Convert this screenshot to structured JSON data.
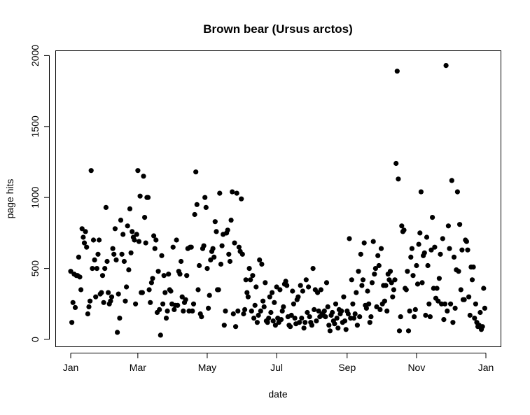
{
  "chart_data": {
    "type": "scatter",
    "title": "Brown bear (Ursus arctos)",
    "xlabel": "date",
    "ylabel": "page hits",
    "x_range": [
      "2015-01-01",
      "2016-01-01"
    ],
    "ylim": [
      0,
      2000
    ],
    "x_ticks": [
      {
        "label": "Jan",
        "date": "2015-01-01"
      },
      {
        "label": "Mar",
        "date": "2015-03-01"
      },
      {
        "label": "May",
        "date": "2015-05-01"
      },
      {
        "label": "Jul",
        "date": "2015-07-01"
      },
      {
        "label": "Sep",
        "date": "2015-09-01"
      },
      {
        "label": "Nov",
        "date": "2015-11-01"
      },
      {
        "label": "Jan",
        "date": "2016-01-01"
      }
    ],
    "y_ticks": [
      0,
      500,
      1000,
      1500,
      2000
    ],
    "grid": false,
    "point_color": "#000000",
    "points": [
      [
        "2015-01-01",
        480
      ],
      [
        "2015-01-02",
        120
      ],
      [
        "2015-01-03",
        260
      ],
      [
        "2015-01-04",
        460
      ],
      [
        "2015-01-05",
        225
      ],
      [
        "2015-01-06",
        450
      ],
      [
        "2015-01-07",
        450
      ],
      [
        "2015-01-08",
        580
      ],
      [
        "2015-01-09",
        440
      ],
      [
        "2015-01-10",
        350
      ],
      [
        "2015-01-11",
        780
      ],
      [
        "2015-01-12",
        720
      ],
      [
        "2015-01-13",
        680
      ],
      [
        "2015-01-14",
        760
      ],
      [
        "2015-01-15",
        650
      ],
      [
        "2015-01-16",
        180
      ],
      [
        "2015-01-17",
        230
      ],
      [
        "2015-01-18",
        270
      ],
      [
        "2015-01-19",
        1190
      ],
      [
        "2015-01-20",
        500
      ],
      [
        "2015-01-21",
        700
      ],
      [
        "2015-01-22",
        560
      ],
      [
        "2015-01-23",
        300
      ],
      [
        "2015-01-24",
        500
      ],
      [
        "2015-01-25",
        600
      ],
      [
        "2015-01-26",
        700
      ],
      [
        "2015-01-27",
        320
      ],
      [
        "2015-01-28",
        330
      ],
      [
        "2015-01-29",
        450
      ],
      [
        "2015-01-30",
        260
      ],
      [
        "2015-01-31",
        500
      ],
      [
        "2015-02-01",
        930
      ],
      [
        "2015-02-02",
        550
      ],
      [
        "2015-02-03",
        330
      ],
      [
        "2015-02-04",
        250
      ],
      [
        "2015-02-05",
        270
      ],
      [
        "2015-02-06",
        300
      ],
      [
        "2015-02-07",
        640
      ],
      [
        "2015-02-08",
        600
      ],
      [
        "2015-02-09",
        780
      ],
      [
        "2015-02-10",
        560
      ],
      [
        "2015-02-11",
        50
      ],
      [
        "2015-02-12",
        320
      ],
      [
        "2015-02-13",
        150
      ],
      [
        "2015-02-14",
        840
      ],
      [
        "2015-02-15",
        600
      ],
      [
        "2015-02-16",
        740
      ],
      [
        "2015-02-17",
        550
      ],
      [
        "2015-02-18",
        270
      ],
      [
        "2015-02-19",
        370
      ],
      [
        "2015-02-20",
        800
      ],
      [
        "2015-02-21",
        490
      ],
      [
        "2015-02-22",
        920
      ],
      [
        "2015-02-23",
        610
      ],
      [
        "2015-02-24",
        760
      ],
      [
        "2015-02-25",
        720
      ],
      [
        "2015-02-26",
        700
      ],
      [
        "2015-02-27",
        250
      ],
      [
        "2015-02-28",
        740
      ],
      [
        "2015-03-01",
        1190
      ],
      [
        "2015-03-02",
        690
      ],
      [
        "2015-03-03",
        1010
      ],
      [
        "2015-03-04",
        330
      ],
      [
        "2015-03-05",
        330
      ],
      [
        "2015-03-06",
        1150
      ],
      [
        "2015-03-07",
        860
      ],
      [
        "2015-03-08",
        680
      ],
      [
        "2015-03-09",
        1000
      ],
      [
        "2015-03-10",
        1000
      ],
      [
        "2015-03-11",
        350
      ],
      [
        "2015-03-12",
        260
      ],
      [
        "2015-03-13",
        400
      ],
      [
        "2015-03-14",
        430
      ],
      [
        "2015-03-15",
        730
      ],
      [
        "2015-03-16",
        640
      ],
      [
        "2015-03-17",
        700
      ],
      [
        "2015-03-18",
        190
      ],
      [
        "2015-03-19",
        480
      ],
      [
        "2015-03-20",
        210
      ],
      [
        "2015-03-21",
        30
      ],
      [
        "2015-03-22",
        590
      ],
      [
        "2015-03-23",
        250
      ],
      [
        "2015-03-24",
        450
      ],
      [
        "2015-03-25",
        330
      ],
      [
        "2015-03-26",
        150
      ],
      [
        "2015-03-27",
        200
      ],
      [
        "2015-03-28",
        460
      ],
      [
        "2015-03-29",
        350
      ],
      [
        "2015-03-30",
        340
      ],
      [
        "2015-03-31",
        250
      ],
      [
        "2015-04-01",
        650
      ],
      [
        "2015-04-02",
        210
      ],
      [
        "2015-04-03",
        240
      ],
      [
        "2015-04-04",
        700
      ],
      [
        "2015-04-05",
        240
      ],
      [
        "2015-04-06",
        480
      ],
      [
        "2015-04-07",
        460
      ],
      [
        "2015-04-08",
        550
      ],
      [
        "2015-04-09",
        300
      ],
      [
        "2015-04-10",
        200
      ],
      [
        "2015-04-11",
        260
      ],
      [
        "2015-04-12",
        280
      ],
      [
        "2015-04-13",
        450
      ],
      [
        "2015-04-14",
        640
      ],
      [
        "2015-04-15",
        200
      ],
      [
        "2015-04-16",
        650
      ],
      [
        "2015-04-17",
        650
      ],
      [
        "2015-04-18",
        200
      ],
      [
        "2015-04-19",
        250
      ],
      [
        "2015-04-20",
        880
      ],
      [
        "2015-04-21",
        1180
      ],
      [
        "2015-04-22",
        950
      ],
      [
        "2015-04-23",
        350
      ],
      [
        "2015-04-24",
        520
      ],
      [
        "2015-04-25",
        180
      ],
      [
        "2015-04-26",
        160
      ],
      [
        "2015-04-27",
        640
      ],
      [
        "2015-04-28",
        660
      ],
      [
        "2015-04-29",
        1000
      ],
      [
        "2015-04-30",
        930
      ],
      [
        "2015-05-01",
        500
      ],
      [
        "2015-05-02",
        220
      ],
      [
        "2015-05-03",
        310
      ],
      [
        "2015-05-04",
        560
      ],
      [
        "2015-05-05",
        620
      ],
      [
        "2015-05-06",
        640
      ],
      [
        "2015-05-07",
        580
      ],
      [
        "2015-05-08",
        830
      ],
      [
        "2015-05-09",
        760
      ],
      [
        "2015-05-10",
        350
      ],
      [
        "2015-05-11",
        350
      ],
      [
        "2015-05-12",
        1030
      ],
      [
        "2015-05-13",
        530
      ],
      [
        "2015-05-14",
        660
      ],
      [
        "2015-05-15",
        740
      ],
      [
        "2015-05-16",
        100
      ],
      [
        "2015-05-17",
        200
      ],
      [
        "2015-05-18",
        750
      ],
      [
        "2015-05-19",
        770
      ],
      [
        "2015-05-20",
        600
      ],
      [
        "2015-05-21",
        550
      ],
      [
        "2015-05-22",
        840
      ],
      [
        "2015-05-23",
        1040
      ],
      [
        "2015-05-24",
        180
      ],
      [
        "2015-05-25",
        680
      ],
      [
        "2015-05-26",
        90
      ],
      [
        "2015-05-27",
        1030
      ],
      [
        "2015-05-28",
        200
      ],
      [
        "2015-05-29",
        650
      ],
      [
        "2015-05-30",
        620
      ],
      [
        "2015-05-31",
        990
      ],
      [
        "2015-06-01",
        600
      ],
      [
        "2015-06-02",
        180
      ],
      [
        "2015-06-03",
        210
      ],
      [
        "2015-06-04",
        420
      ],
      [
        "2015-06-05",
        330
      ],
      [
        "2015-06-06",
        300
      ],
      [
        "2015-06-07",
        500
      ],
      [
        "2015-06-08",
        420
      ],
      [
        "2015-06-09",
        200
      ],
      [
        "2015-06-10",
        450
      ],
      [
        "2015-06-11",
        150
      ],
      [
        "2015-06-12",
        240
      ],
      [
        "2015-06-13",
        370
      ],
      [
        "2015-06-14",
        120
      ],
      [
        "2015-06-15",
        170
      ],
      [
        "2015-06-16",
        560
      ],
      [
        "2015-06-17",
        200
      ],
      [
        "2015-06-18",
        530
      ],
      [
        "2015-06-19",
        270
      ],
      [
        "2015-06-20",
        230
      ],
      [
        "2015-06-21",
        400
      ],
      [
        "2015-06-22",
        130
      ],
      [
        "2015-06-23",
        120
      ],
      [
        "2015-06-24",
        150
      ],
      [
        "2015-06-25",
        300
      ],
      [
        "2015-06-26",
        190
      ],
      [
        "2015-06-27",
        330
      ],
      [
        "2015-06-28",
        130
      ],
      [
        "2015-06-29",
        260
      ],
      [
        "2015-06-30",
        100
      ],
      [
        "2015-07-01",
        370
      ],
      [
        "2015-07-02",
        150
      ],
      [
        "2015-07-03",
        120
      ],
      [
        "2015-07-04",
        350
      ],
      [
        "2015-07-05",
        140
      ],
      [
        "2015-07-06",
        200
      ],
      [
        "2015-07-07",
        230
      ],
      [
        "2015-07-08",
        390
      ],
      [
        "2015-07-09",
        410
      ],
      [
        "2015-07-10",
        380
      ],
      [
        "2015-07-11",
        160
      ],
      [
        "2015-07-12",
        100
      ],
      [
        "2015-07-13",
        90
      ],
      [
        "2015-07-14",
        170
      ],
      [
        "2015-07-15",
        340
      ],
      [
        "2015-07-16",
        250
      ],
      [
        "2015-07-17",
        150
      ],
      [
        "2015-07-18",
        110
      ],
      [
        "2015-07-19",
        280
      ],
      [
        "2015-07-20",
        300
      ],
      [
        "2015-07-21",
        120
      ],
      [
        "2015-07-22",
        380
      ],
      [
        "2015-07-23",
        150
      ],
      [
        "2015-07-24",
        340
      ],
      [
        "2015-07-25",
        80
      ],
      [
        "2015-07-26",
        120
      ],
      [
        "2015-07-27",
        420
      ],
      [
        "2015-07-28",
        190
      ],
      [
        "2015-07-29",
        370
      ],
      [
        "2015-07-30",
        160
      ],
      [
        "2015-07-31",
        120
      ],
      [
        "2015-08-01",
        100
      ],
      [
        "2015-08-02",
        500
      ],
      [
        "2015-08-03",
        210
      ],
      [
        "2015-08-04",
        350
      ],
      [
        "2015-08-05",
        130
      ],
      [
        "2015-08-06",
        330
      ],
      [
        "2015-08-07",
        200
      ],
      [
        "2015-08-08",
        160
      ],
      [
        "2015-08-09",
        350
      ],
      [
        "2015-08-10",
        180
      ],
      [
        "2015-08-11",
        170
      ],
      [
        "2015-08-12",
        200
      ],
      [
        "2015-08-13",
        160
      ],
      [
        "2015-08-14",
        400
      ],
      [
        "2015-08-15",
        230
      ],
      [
        "2015-08-16",
        100
      ],
      [
        "2015-08-17",
        60
      ],
      [
        "2015-08-18",
        170
      ],
      [
        "2015-08-19",
        190
      ],
      [
        "2015-08-20",
        130
      ],
      [
        "2015-08-21",
        110
      ],
      [
        "2015-08-22",
        250
      ],
      [
        "2015-08-23",
        150
      ],
      [
        "2015-08-24",
        80
      ],
      [
        "2015-08-25",
        210
      ],
      [
        "2015-08-26",
        180
      ],
      [
        "2015-08-27",
        200
      ],
      [
        "2015-08-28",
        120
      ],
      [
        "2015-08-29",
        300
      ],
      [
        "2015-08-30",
        130
      ],
      [
        "2015-08-31",
        70
      ],
      [
        "2015-09-01",
        200
      ],
      [
        "2015-09-02",
        180
      ],
      [
        "2015-09-03",
        710
      ],
      [
        "2015-09-04",
        150
      ],
      [
        "2015-09-05",
        420
      ],
      [
        "2015-09-06",
        250
      ],
      [
        "2015-09-07",
        150
      ],
      [
        "2015-09-08",
        180
      ],
      [
        "2015-09-09",
        330
      ],
      [
        "2015-09-10",
        100
      ],
      [
        "2015-09-11",
        480
      ],
      [
        "2015-09-12",
        160
      ],
      [
        "2015-09-13",
        600
      ],
      [
        "2015-09-14",
        380
      ],
      [
        "2015-09-15",
        420
      ],
      [
        "2015-09-16",
        680
      ],
      [
        "2015-09-17",
        240
      ],
      [
        "2015-09-18",
        220
      ],
      [
        "2015-09-19",
        340
      ],
      [
        "2015-09-20",
        250
      ],
      [
        "2015-09-21",
        120
      ],
      [
        "2015-09-22",
        160
      ],
      [
        "2015-09-23",
        400
      ],
      [
        "2015-09-24",
        690
      ],
      [
        "2015-09-25",
        460
      ],
      [
        "2015-09-26",
        500
      ],
      [
        "2015-09-27",
        230
      ],
      [
        "2015-09-28",
        590
      ],
      [
        "2015-09-29",
        520
      ],
      [
        "2015-09-30",
        210
      ],
      [
        "2015-10-01",
        640
      ],
      [
        "2015-10-02",
        250
      ],
      [
        "2015-10-03",
        380
      ],
      [
        "2015-10-04",
        270
      ],
      [
        "2015-10-05",
        380
      ],
      [
        "2015-10-06",
        200
      ],
      [
        "2015-10-07",
        460
      ],
      [
        "2015-10-08",
        420
      ],
      [
        "2015-10-09",
        480
      ],
      [
        "2015-10-10",
        400
      ],
      [
        "2015-10-11",
        300
      ],
      [
        "2015-10-12",
        350
      ],
      [
        "2015-10-13",
        420
      ],
      [
        "2015-10-14",
        1240
      ],
      [
        "2015-10-15",
        1890
      ],
      [
        "2015-10-16",
        1130
      ],
      [
        "2015-10-17",
        60
      ],
      [
        "2015-10-18",
        160
      ],
      [
        "2015-10-19",
        800
      ],
      [
        "2015-10-20",
        760
      ],
      [
        "2015-10-21",
        770
      ],
      [
        "2015-10-22",
        360
      ],
      [
        "2015-10-23",
        350
      ],
      [
        "2015-10-24",
        480
      ],
      [
        "2015-10-25",
        60
      ],
      [
        "2015-10-26",
        200
      ],
      [
        "2015-10-27",
        580
      ],
      [
        "2015-10-28",
        640
      ],
      [
        "2015-10-29",
        450
      ],
      [
        "2015-10-30",
        160
      ],
      [
        "2015-10-31",
        210
      ],
      [
        "2015-11-01",
        520
      ],
      [
        "2015-11-02",
        390
      ],
      [
        "2015-11-03",
        670
      ],
      [
        "2015-11-04",
        750
      ],
      [
        "2015-11-05",
        1040
      ],
      [
        "2015-11-06",
        400
      ],
      [
        "2015-11-07",
        590
      ],
      [
        "2015-11-08",
        610
      ],
      [
        "2015-11-09",
        170
      ],
      [
        "2015-11-10",
        720
      ],
      [
        "2015-11-11",
        520
      ],
      [
        "2015-11-12",
        250
      ],
      [
        "2015-11-13",
        160
      ],
      [
        "2015-11-14",
        630
      ],
      [
        "2015-11-15",
        860
      ],
      [
        "2015-11-16",
        360
      ],
      [
        "2015-11-17",
        650
      ],
      [
        "2015-11-18",
        290
      ],
      [
        "2015-11-19",
        360
      ],
      [
        "2015-11-20",
        270
      ],
      [
        "2015-11-21",
        430
      ],
      [
        "2015-11-22",
        600
      ],
      [
        "2015-11-23",
        250
      ],
      [
        "2015-11-24",
        710
      ],
      [
        "2015-11-25",
        140
      ],
      [
        "2015-11-26",
        250
      ],
      [
        "2015-11-27",
        1930
      ],
      [
        "2015-11-28",
        200
      ],
      [
        "2015-11-29",
        800
      ],
      [
        "2015-11-30",
        640
      ],
      [
        "2015-12-01",
        250
      ],
      [
        "2015-12-02",
        1120
      ],
      [
        "2015-12-03",
        120
      ],
      [
        "2015-12-04",
        580
      ],
      [
        "2015-12-05",
        220
      ],
      [
        "2015-12-06",
        490
      ],
      [
        "2015-12-07",
        1040
      ],
      [
        "2015-12-08",
        480
      ],
      [
        "2015-12-09",
        810
      ],
      [
        "2015-12-10",
        350
      ],
      [
        "2015-12-11",
        630
      ],
      [
        "2015-12-12",
        280
      ],
      [
        "2015-12-13",
        280
      ],
      [
        "2015-12-14",
        700
      ],
      [
        "2015-12-15",
        690
      ],
      [
        "2015-12-16",
        630
      ],
      [
        "2015-12-17",
        300
      ],
      [
        "2015-12-18",
        170
      ],
      [
        "2015-12-19",
        510
      ],
      [
        "2015-12-20",
        420
      ],
      [
        "2015-12-21",
        510
      ],
      [
        "2015-12-22",
        150
      ],
      [
        "2015-12-23",
        250
      ],
      [
        "2015-12-24",
        120
      ],
      [
        "2015-12-25",
        90
      ],
      [
        "2015-12-26",
        100
      ],
      [
        "2015-12-27",
        190
      ],
      [
        "2015-12-28",
        70
      ],
      [
        "2015-12-29",
        90
      ],
      [
        "2015-12-30",
        360
      ],
      [
        "2015-12-31",
        220
      ]
    ]
  }
}
